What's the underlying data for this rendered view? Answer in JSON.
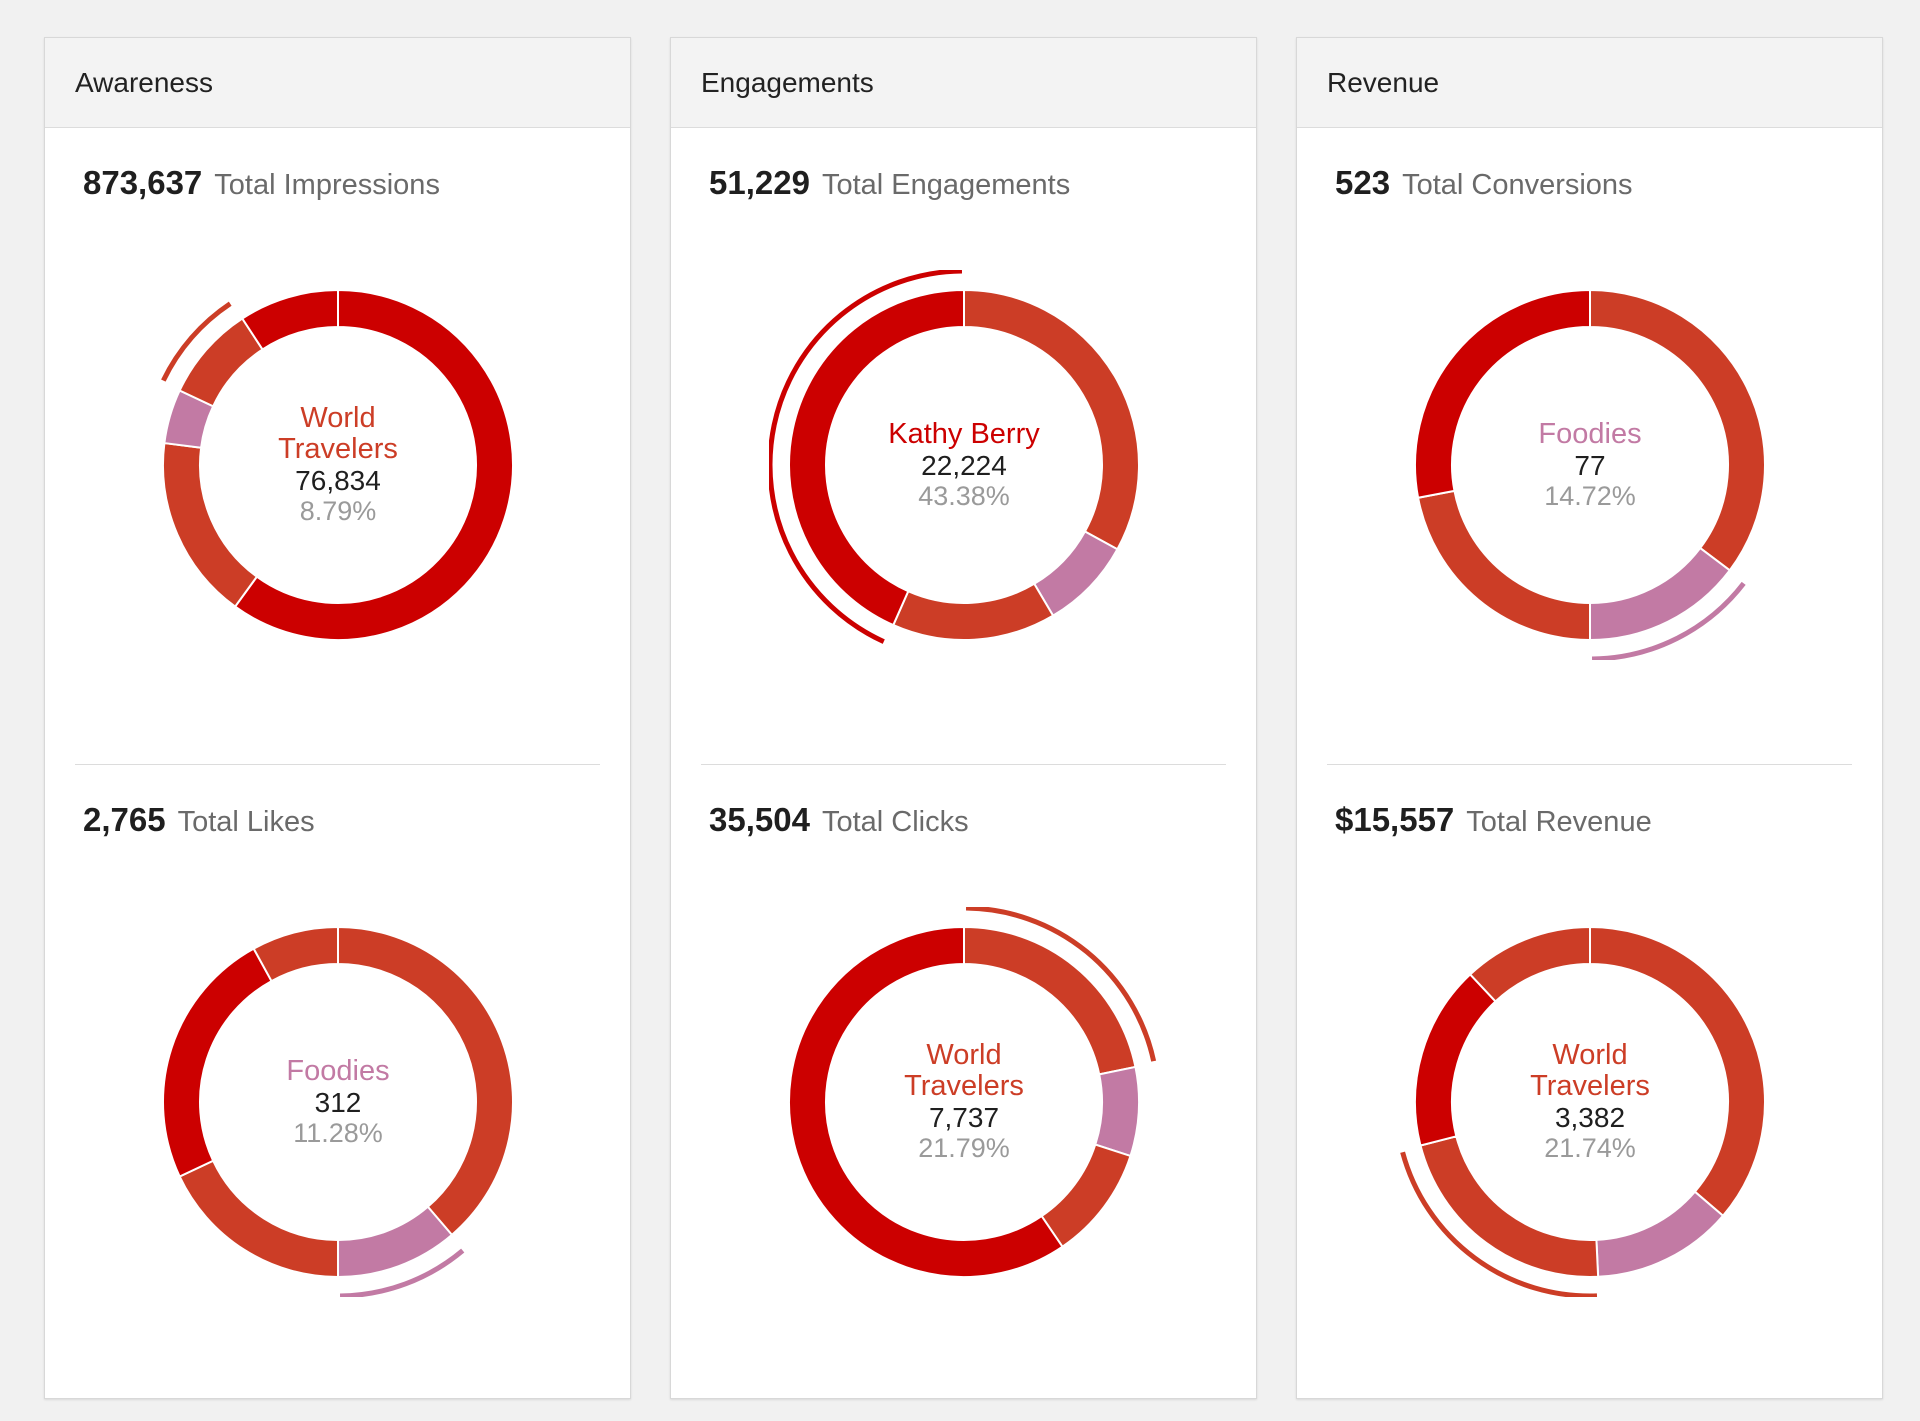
{
  "colors": {
    "red": "#cc0000",
    "orange_red": "#cc3d26",
    "pink": "#c27aa4",
    "text_dark": "#1f1f1f",
    "text_muted": "#6a6a6a",
    "text_pct": "#9a9a9a"
  },
  "cards": [
    {
      "title": "Awareness",
      "metrics": [
        {
          "value": "873,637",
          "label": "Total Impressions",
          "center": {
            "name": "World Travelers",
            "value": "76,834",
            "pct": "8.79%",
            "color": "#cc3d26"
          }
        },
        {
          "value": "2,765",
          "label": "Total Likes",
          "center": {
            "name": "Foodies",
            "value": "312",
            "pct": "11.28%",
            "color": "#c27aa4"
          }
        }
      ]
    },
    {
      "title": "Engagements",
      "metrics": [
        {
          "value": "51,229",
          "label": "Total Engagements",
          "center": {
            "name": "Kathy Berry",
            "value": "22,224",
            "pct": "43.38%",
            "color": "#cc0000"
          }
        },
        {
          "value": "35,504",
          "label": "Total Clicks",
          "center": {
            "name": "World Travelers",
            "value": "7,737",
            "pct": "21.79%",
            "color": "#cc3d26"
          }
        }
      ]
    },
    {
      "title": "Revenue",
      "metrics": [
        {
          "value": "523",
          "label": "Total Conversions",
          "center": {
            "name": "Foodies",
            "value": "77",
            "pct": "14.72%",
            "color": "#c27aa4"
          }
        },
        {
          "value": "$15,557",
          "label": "Total Revenue",
          "center": {
            "name": "World Travelers",
            "value": "3,382",
            "pct": "21.74%",
            "color": "#cc3d26"
          }
        }
      ]
    }
  ],
  "chart_data": [
    {
      "type": "pie",
      "label": "Total Impressions",
      "slices": [
        {
          "color": "#cc0000",
          "value": 60.0
        },
        {
          "color": "#cc3d26",
          "value": 17.0
        },
        {
          "color": "#c27aa4",
          "value": 5.0
        },
        {
          "color": "#cc3d26",
          "value": 8.79,
          "highlighted": true,
          "name": "World Travelers",
          "display_value": 76834
        },
        {
          "color": "#cc0000",
          "value": 9.21
        }
      ]
    },
    {
      "type": "pie",
      "label": "Total Likes",
      "slices": [
        {
          "color": "#cc3d26",
          "value": 38.72
        },
        {
          "color": "#c27aa4",
          "value": 11.28,
          "highlighted": true,
          "name": "Foodies",
          "display_value": 312
        },
        {
          "color": "#cc3d26",
          "value": 18.0
        },
        {
          "color": "#cc0000",
          "value": 24.0
        },
        {
          "color": "#cc3d26",
          "value": 8.0
        }
      ]
    },
    {
      "type": "pie",
      "label": "Total Engagements",
      "slices": [
        {
          "color": "#cc3d26",
          "value": 33.0
        },
        {
          "color": "#c27aa4",
          "value": 8.5
        },
        {
          "color": "#cc3d26",
          "value": 15.12
        },
        {
          "color": "#cc0000",
          "value": 43.38,
          "highlighted": true,
          "name": "Kathy Berry",
          "display_value": 22224
        }
      ]
    },
    {
      "type": "pie",
      "label": "Total Clicks",
      "slices": [
        {
          "color": "#cc3d26",
          "value": 21.79,
          "highlighted": true,
          "name": "World Travelers",
          "display_value": 7737
        },
        {
          "color": "#c27aa4",
          "value": 8.2
        },
        {
          "color": "#cc3d26",
          "value": 10.5
        },
        {
          "color": "#cc0000",
          "value": 59.51
        }
      ]
    },
    {
      "type": "pie",
      "label": "Total Conversions",
      "slices": [
        {
          "color": "#cc3d26",
          "value": 35.28
        },
        {
          "color": "#c27aa4",
          "value": 14.72,
          "highlighted": true,
          "name": "Foodies",
          "display_value": 77
        },
        {
          "color": "#cc3d26",
          "value": 22.0
        },
        {
          "color": "#cc0000",
          "value": 28.0
        }
      ]
    },
    {
      "type": "pie",
      "label": "Total Revenue",
      "slices": [
        {
          "color": "#cc3d26",
          "value": 36.26
        },
        {
          "color": "#c27aa4",
          "value": 13.0
        },
        {
          "color": "#cc3d26",
          "value": 21.74,
          "highlighted": true,
          "name": "World Travelers",
          "display_value": 3382
        },
        {
          "color": "#cc0000",
          "value": 17.0
        },
        {
          "color": "#cc3d26",
          "value": 12.0
        }
      ]
    }
  ]
}
